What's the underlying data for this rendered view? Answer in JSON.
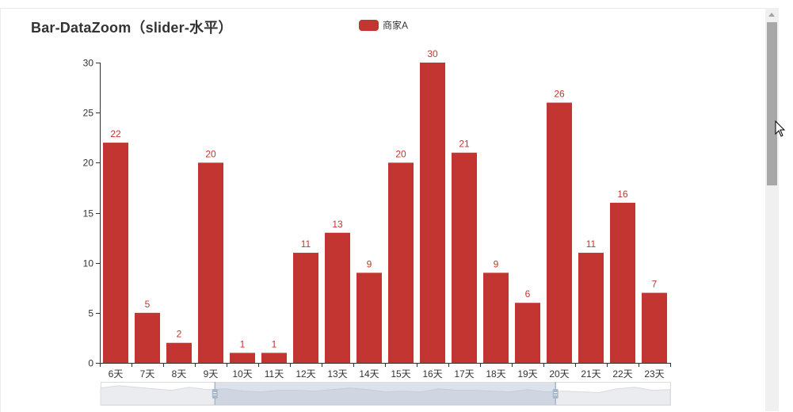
{
  "title": "Bar-DataZoom（slider-水平）",
  "legend": {
    "label": "商家A",
    "color": "#c23531"
  },
  "colors": {
    "bar": "#c23531",
    "label": "#c23531",
    "axis": "#333333",
    "slider_fill": "#d3dbe6",
    "slider_handle": "#a7b7cc"
  },
  "chart_data": {
    "type": "bar",
    "title": "Bar-DataZoom（slider-水平）",
    "xlabel": "",
    "ylabel": "",
    "categories": [
      "6天",
      "7天",
      "8天",
      "9天",
      "10天",
      "11天",
      "12天",
      "13天",
      "14天",
      "15天",
      "16天",
      "17天",
      "18天",
      "19天",
      "20天",
      "21天",
      "22天",
      "23天"
    ],
    "series": [
      {
        "name": "商家A",
        "values": [
          22,
          5,
          2,
          20,
          1,
          1,
          11,
          13,
          9,
          20,
          30,
          21,
          9,
          6,
          26,
          11,
          16,
          7
        ]
      }
    ],
    "yticks": [
      0,
      5,
      10,
      15,
      20,
      25,
      30
    ],
    "ylim": [
      0,
      30
    ],
    "grid": false,
    "legend_position": "top",
    "data_labels": true,
    "datazoom": {
      "type": "slider",
      "orient": "horizontal",
      "start_pct": 20,
      "end_pct": 80
    },
    "slider_overview_values": [
      22,
      25,
      23,
      21,
      19,
      23,
      20,
      21,
      18,
      17,
      19,
      19,
      18,
      20,
      22,
      20,
      17,
      18,
      17,
      21,
      19,
      19,
      18,
      17,
      20,
      17,
      18,
      17,
      16,
      21,
      23,
      19,
      20
    ]
  }
}
